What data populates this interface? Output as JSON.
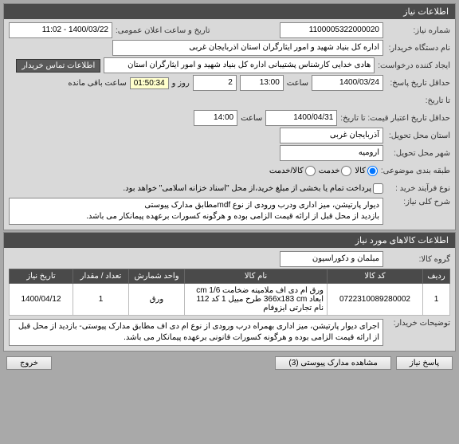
{
  "colors": {
    "panel_header_bg": "#4a4a4a",
    "panel_header_fg": "#ffffff",
    "panel_bg": "#d9d9d9",
    "field_bg": "#ffffff",
    "border": "#888888",
    "timer_bg": "#ffffcc"
  },
  "panel1": {
    "title": "اطلاعات نیاز",
    "need_no_label": "شماره نیاز:",
    "need_no": "1100005322000020",
    "announce_label": "تاریخ و ساعت اعلان عمومی:",
    "announce": "1400/03/22 - 11:02",
    "buyer_org_label": "نام دستگاه خریدار:",
    "buyer_org": "اداره کل بنیاد شهید و امور ایثارگران استان اذربایجان غربی",
    "creator_label": "ایجاد کننده درخواست:",
    "creator": "هادی  خدایی کارشناس پشتیبانی  اداره کل بنیاد شهید و امور ایثارگران استان",
    "contact_btn": "اطلاعات تماس خریدار",
    "resp_deadline_label": "حداقل تاریخ پاسخ:",
    "resp_date": "1400/03/24",
    "resp_time_label": "ساعت",
    "resp_time": "13:00",
    "days": "2",
    "days_label": "روز و",
    "timer": "01:50:34",
    "remain_label": "ساعت باقی مانده",
    "to_date_label": "تا تاریخ:",
    "price_valid_label": "حداقل تاریخ اعتبار قیمت: تا تاریخ:",
    "price_valid_date": "1400/04/31",
    "price_valid_time": "14:00",
    "deliv_prov_label": "استان محل تحویل:",
    "deliv_prov": "آذربایجان غربی",
    "deliv_city_label": "شهر محل تحویل:",
    "deliv_city": "ارومیه",
    "cat_label": "طبقه بندی موضوعی:",
    "cat_goods": "کالا",
    "cat_service": "خدمت",
    "cat_goods_service": "کالا/خدمت",
    "proc_type_label": "نوع فرآیند خرید :",
    "proc_type_note": "پرداخت تمام یا بخشی از مبلغ خرید،از محل \"اسناد خزانه اسلامی\" خواهد بود.",
    "desc_label": "شرح کلی نیاز:",
    "desc": "دیوار پارتیشن، میز اداری ودرب ورودی از نوع mdfمطابق مدارک پیوستی\nبازدید از محل قبل از ارائه قیمت الزامی بوده و هرگونه کسورات برعهده پیمانکار می باشد."
  },
  "panel2": {
    "title": "اطلاعات کالاهای مورد نیاز",
    "group_label": "گروه کالا:",
    "group": "مبلمان و دکوراسیون",
    "table": {
      "headers": [
        "ردیف",
        "کد کالا",
        "نام کالا",
        "واحد شمارش",
        "تعداد / مقدار",
        "تاریخ نیاز"
      ],
      "col_widths": [
        "34px",
        "120px",
        "auto",
        "70px",
        "70px",
        "80px"
      ],
      "rows": [
        [
          "1",
          "0722310089280002",
          "ورق ام دی اف ملامینه ضخامت cm 1/6 ابعاد 366x183 cm طرح مبیل 1 کد 112 نام تجارتی ایزوفام",
          "ورق",
          "1",
          "1400/04/12"
        ]
      ]
    },
    "buyer_notes_label": "توضیحات خریدار:",
    "buyer_notes": "اجرای دیوار پارتیشن، میز اداری بهمراه درب ورودی از نوع ام دی اف مطابق مدارک پیوستی- بازدید از محل قبل از ارائه قیمت الزامی بوده و هرگونه کسورات قانونی برعهده پیمانکار می باشد."
  },
  "footer": {
    "reply": "پاسخ نیاز",
    "attachments": "مشاهده مدارک پیوستی (3)",
    "exit": "خروج"
  }
}
